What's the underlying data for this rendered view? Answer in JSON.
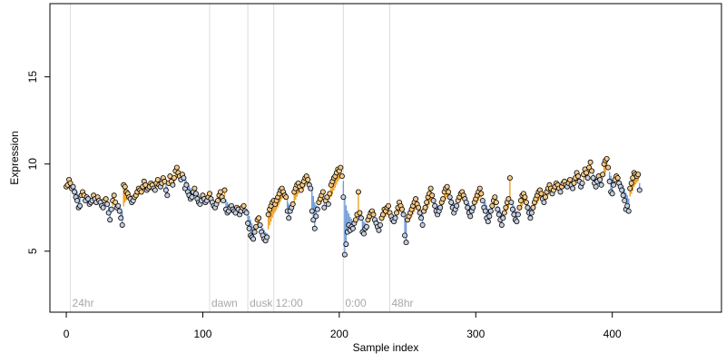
{
  "chart_data": {
    "type": "scatter",
    "title": "",
    "xlabel": "Sample index",
    "ylabel": "Expression",
    "xlim": [
      -12,
      480
    ],
    "ylim": [
      1.5,
      19.2
    ],
    "xticks": [
      0,
      100,
      200,
      300,
      400
    ],
    "yticks": [
      5,
      10,
      15
    ],
    "grid": false,
    "colors": {
      "point_fill_low": "#c5cde0",
      "point_fill_high": "#f3c98a",
      "drop_low": "#6f9bd8",
      "drop_high": "#f0a020",
      "vline": "#dcdcdc",
      "vline_text": "#a8a8a8"
    },
    "markers": [
      {
        "x": 3,
        "label": "24hr"
      },
      {
        "x": 105,
        "label": "dawn"
      },
      {
        "x": 133,
        "label": "dusk"
      },
      {
        "x": 152,
        "label": "12:00"
      },
      {
        "x": 203,
        "label": "0:00"
      },
      {
        "x": 237,
        "label": "48hr"
      }
    ],
    "series": [
      {
        "values": [
          8.7,
          8.8,
          9.1,
          8.9,
          8.6,
          8.7,
          8.4,
          8.1,
          7.9,
          7.5,
          7.6,
          8.2,
          8.4,
          8.2,
          7.9,
          8.1,
          8.0,
          7.7,
          7.8,
          7.9,
          8.2,
          8.0,
          7.8,
          8.1,
          7.9,
          7.8,
          7.6,
          7.5,
          7.9,
          8.0,
          7.7,
          7.2,
          6.8,
          7.4,
          7.9,
          8.2,
          7.8,
          7.5,
          7.6,
          7.3,
          6.9,
          6.5,
          8.8,
          8.7,
          8.4,
          8.3,
          8.1,
          8.0,
          7.8,
          7.9,
          8.1,
          8.2,
          8.4,
          8.6,
          8.5,
          8.4,
          8.7,
          9.0,
          8.8,
          8.5,
          8.6,
          8.7,
          8.9,
          8.8,
          8.6,
          8.5,
          8.9,
          9.1,
          8.8,
          8.7,
          8.9,
          9.2,
          9.0,
          8.5,
          8.2,
          8.9,
          9.3,
          9.0,
          8.8,
          9.2,
          9.6,
          9.8,
          9.5,
          9.3,
          9.1,
          9.4,
          9.2,
          8.6,
          8.8,
          8.4,
          8.2,
          8.0,
          8.1,
          8.4,
          8.6,
          8.3,
          8.0,
          7.8,
          7.7,
          7.9,
          8.2,
          8.0,
          7.8,
          7.9,
          8.1,
          8.3,
          8.0,
          7.8,
          7.6,
          7.5,
          7.7,
          7.9,
          8.2,
          8.4,
          8.1,
          7.9,
          8.5,
          7.4,
          7.2,
          7.3,
          7.5,
          7.6,
          7.4,
          7.3,
          7.2,
          7.5,
          7.4,
          7.1,
          7.3,
          7.5,
          7.6,
          7.3,
          7.2,
          6.6,
          6.3,
          5.9,
          5.8,
          5.7,
          6.1,
          6.4,
          6.8,
          6.9,
          6.5,
          6.1,
          5.9,
          5.7,
          5.6,
          5.8,
          7.1,
          7.4,
          7.6,
          7.8,
          7.9,
          7.7,
          7.9,
          8.1,
          8.3,
          8.5,
          8.6,
          8.4,
          8.2,
          8.1,
          7.3,
          6.9,
          7.3,
          7.5,
          7.7,
          8.4,
          8.6,
          8.8,
          8.9,
          8.7,
          8.5,
          8.8,
          9.0,
          9.2,
          9.3,
          9.1,
          8.8,
          8.6,
          7.3,
          6.8,
          6.3,
          7.0,
          7.4,
          7.8,
          8.0,
          8.2,
          8.4,
          7.5,
          7.9,
          8.1,
          7.7,
          8.3,
          8.8,
          9.0,
          9.2,
          9.3,
          9.5,
          9.7,
          9.6,
          9.8,
          9.3,
          8.1,
          4.8,
          5.4,
          6.1,
          6.5,
          6.2,
          6.4,
          6.3,
          6.6,
          6.8,
          7.1,
          8.4,
          7.2,
          6.9,
          6.1,
          6.0,
          6.3,
          6.4,
          6.8,
          7.0,
          7.2,
          7.3,
          7.1,
          6.8,
          6.6,
          6.4,
          6.2,
          6.5,
          6.9,
          7.1,
          7.4,
          7.3,
          7.5,
          7.6,
          7.2,
          7.0,
          6.8,
          6.7,
          6.9,
          7.2,
          7.5,
          7.8,
          7.6,
          7.4,
          7.1,
          5.9,
          5.5,
          6.8,
          7.0,
          7.2,
          7.4,
          7.6,
          7.8,
          8.0,
          7.7,
          7.5,
          7.2,
          6.9,
          6.5,
          7.3,
          7.5,
          7.8,
          8.1,
          8.3,
          8.6,
          8.2,
          7.9,
          7.6,
          7.3,
          7.1,
          7.3,
          7.5,
          7.8,
          8.0,
          8.4,
          8.6,
          8.7,
          8.4,
          8.1,
          7.8,
          7.5,
          7.2,
          7.4,
          7.6,
          7.9,
          8.1,
          8.3,
          8.4,
          8.2,
          8.0,
          7.8,
          7.5,
          7.2,
          7.0,
          7.3,
          7.5,
          7.8,
          8.0,
          8.2,
          8.4,
          8.6,
          8.3,
          7.9,
          7.5,
          7.3,
          6.9,
          6.7,
          7.0,
          7.3,
          7.6,
          7.9,
          8.1,
          7.8,
          7.4,
          7.1,
          6.8,
          6.5,
          6.9,
          7.2,
          7.5,
          7.8,
          8.0,
          9.2,
          7.8,
          7.4,
          7.1,
          6.8,
          6.7,
          7.1,
          7.5,
          7.9,
          8.2,
          8.3,
          8.1,
          7.8,
          7.5,
          7.2,
          6.9,
          7.2,
          7.5,
          7.8,
          8.0,
          8.2,
          8.4,
          8.5,
          8.3,
          8.0,
          7.8,
          8.1,
          8.4,
          8.6,
          8.8,
          8.6,
          8.3,
          8.5,
          8.7,
          8.9,
          8.8,
          8.6,
          8.4,
          8.7,
          8.9,
          9.0,
          8.8,
          8.7,
          8.9,
          9.1,
          8.8,
          8.6,
          8.9,
          9.2,
          9.5,
          9.3,
          9.0,
          8.7,
          8.9,
          9.4,
          9.7,
          9.5,
          9.2,
          9.8,
          10.1,
          9.6,
          9.2,
          8.9,
          8.7,
          9.0,
          9.3,
          9.1,
          8.8,
          9.4,
          10.0,
          10.2,
          10.3,
          9.8,
          9.0,
          8.4,
          8.3,
          8.8,
          9.1,
          9.3,
          9.2,
          8.9,
          8.7,
          8.5,
          8.2,
          7.9,
          7.4,
          7.6,
          7.3,
          8.6,
          8.9,
          9.2,
          9.5,
          9.4,
          9.3,
          9.4,
          8.5
        ]
      }
    ]
  }
}
